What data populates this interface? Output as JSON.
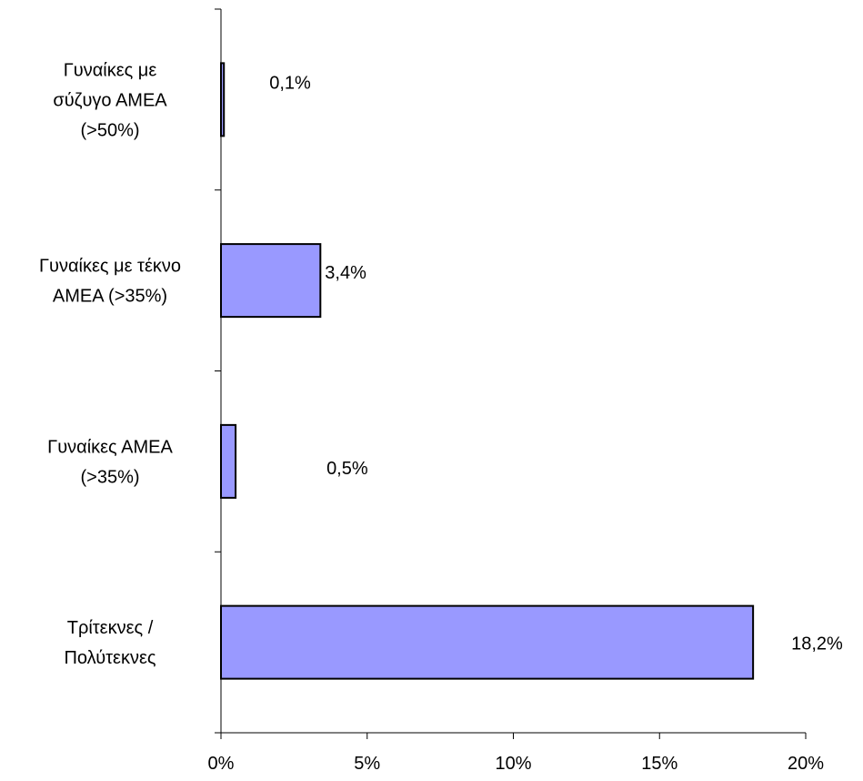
{
  "chart_data": {
    "type": "bar",
    "orientation": "horizontal",
    "categories": [
      "Γυναίκες με σύζυγο ΑΜΕΑ (>50%)",
      "Γυναίκες με τέκνο ΑΜΕΑ (>35%)",
      "Γυναίκες ΑΜΕΑ (>35%)",
      "Τρίτεκνες / Πολύτεκνες"
    ],
    "category_label_lines": [
      [
        "Γυναίκες με",
        "σύζυγο ΑΜΕΑ",
        "(>50%)"
      ],
      [
        "Γυναίκες με τέκνο",
        "ΑΜΕΑ (>35%)"
      ],
      [
        "Γυναίκες ΑΜΕΑ",
        "(>35%)"
      ],
      [
        "Τρίτεκνες /",
        "Πολύτεκνες"
      ]
    ],
    "values": [
      0.1,
      3.4,
      0.5,
      18.2
    ],
    "data_labels": [
      "0,1%",
      "3,4%",
      "0,5%",
      "18,2%"
    ],
    "xlim": [
      0,
      20
    ],
    "x_ticks": [
      0,
      5,
      10,
      15,
      20
    ],
    "x_tick_labels": [
      "0%",
      "5%",
      "10%",
      "15%",
      "20%"
    ],
    "title": "",
    "xlabel": "",
    "ylabel": "",
    "grid": false,
    "legend": "none",
    "bar_color": "#9999ff",
    "bar_edge_color": "#000000"
  }
}
